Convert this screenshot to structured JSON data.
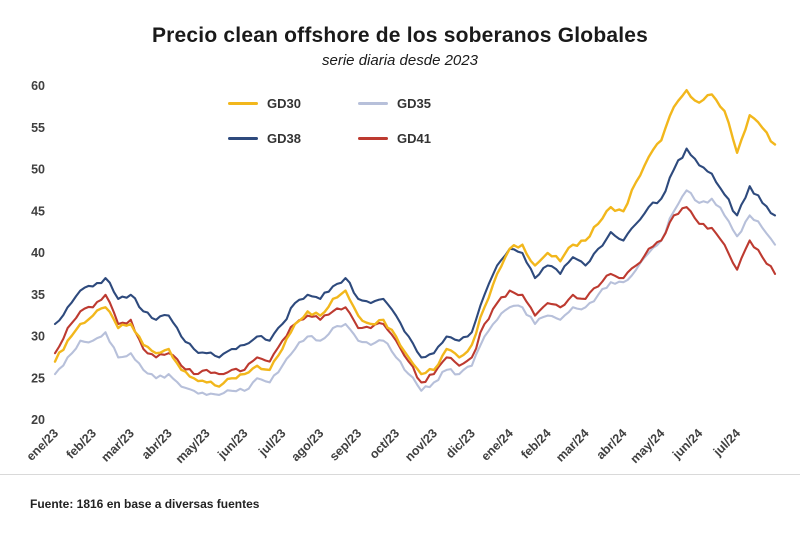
{
  "header": {
    "title": "Precio clean offshore de los soberanos Globales",
    "subtitle": "serie diaria desde 2023"
  },
  "footer": {
    "source": "Fuente: 1816 en base a diversas fuentes"
  },
  "chart_data": {
    "type": "line",
    "title": "Precio clean offshore de los soberanos Globales",
    "subtitle": "serie diaria desde 2023",
    "xlabel": "",
    "ylabel": "",
    "ylim": [
      20,
      60
    ],
    "yticks": [
      20,
      25,
      30,
      35,
      40,
      45,
      50,
      55,
      60
    ],
    "grid": false,
    "legend_position": "inside-top-left",
    "categories": [
      "ene/23",
      "feb/23",
      "mar/23",
      "abr/23",
      "may/23",
      "jun/23",
      "jul/23",
      "ago/23",
      "sep/23",
      "oct/23",
      "nov/23",
      "dic/23",
      "ene/24",
      "feb/24",
      "mar/24",
      "abr/24",
      "may/24",
      "jun/24",
      "jul/24"
    ],
    "x_note": "values sampled ~3 per month from ene/23 through fin jul/24",
    "series": [
      {
        "name": "GD30",
        "color": "#f2b71c",
        "values": [
          27.0,
          29.5,
          31.5,
          32.5,
          33.5,
          31.0,
          31.5,
          29.0,
          28.0,
          28.5,
          26.0,
          25.0,
          24.5,
          24.0,
          25.0,
          25.5,
          26.5,
          26.0,
          28.5,
          31.5,
          33.0,
          32.5,
          34.5,
          35.5,
          32.5,
          31.5,
          32.0,
          30.0,
          27.5,
          25.5,
          26.0,
          28.5,
          27.5,
          29.0,
          33.5,
          37.5,
          40.5,
          41.0,
          38.5,
          40.0,
          39.0,
          41.0,
          41.5,
          43.5,
          45.5,
          45.0,
          48.5,
          51.5,
          53.5,
          57.5,
          59.5,
          58.0,
          59.0,
          57.0,
          52.0,
          56.5,
          55.0,
          53.0
        ]
      },
      {
        "name": "GD35",
        "color": "#b7c0da",
        "values": [
          25.5,
          27.5,
          29.5,
          29.5,
          30.5,
          27.5,
          28.0,
          26.0,
          25.0,
          25.5,
          24.0,
          23.5,
          23.0,
          23.0,
          23.5,
          23.5,
          25.0,
          24.5,
          26.5,
          28.5,
          30.0,
          29.5,
          31.0,
          31.5,
          29.5,
          29.0,
          29.5,
          27.5,
          25.5,
          23.5,
          24.5,
          26.0,
          25.5,
          26.5,
          30.0,
          32.0,
          33.5,
          33.5,
          31.5,
          32.5,
          32.0,
          33.5,
          33.5,
          35.0,
          36.5,
          36.5,
          38.0,
          40.0,
          41.5,
          45.0,
          47.5,
          46.0,
          46.5,
          44.5,
          42.0,
          44.5,
          43.0,
          41.0
        ]
      },
      {
        "name": "GD38",
        "color": "#2e4a7d",
        "values": [
          31.5,
          33.5,
          35.5,
          36.0,
          37.0,
          34.5,
          35.0,
          33.0,
          32.0,
          32.5,
          30.0,
          28.5,
          28.0,
          27.5,
          28.5,
          29.0,
          30.0,
          29.5,
          31.5,
          34.0,
          35.0,
          34.5,
          36.0,
          37.0,
          34.5,
          34.0,
          34.5,
          32.5,
          30.0,
          27.5,
          28.0,
          30.0,
          29.5,
          30.5,
          35.0,
          38.5,
          40.5,
          40.0,
          37.0,
          38.5,
          37.5,
          39.5,
          38.5,
          40.5,
          42.5,
          41.5,
          43.5,
          45.5,
          46.5,
          50.0,
          52.5,
          50.5,
          49.5,
          47.0,
          44.5,
          48.0,
          46.0,
          44.5
        ]
      },
      {
        "name": "GD41",
        "color": "#bd3a30",
        "values": [
          28.0,
          31.0,
          33.0,
          33.5,
          35.0,
          31.5,
          32.0,
          28.5,
          27.5,
          28.0,
          26.5,
          25.5,
          26.0,
          25.5,
          26.0,
          26.0,
          27.5,
          27.0,
          29.5,
          31.5,
          32.5,
          32.0,
          33.0,
          33.5,
          31.0,
          31.0,
          31.5,
          29.5,
          27.0,
          24.5,
          25.5,
          27.5,
          26.5,
          27.5,
          31.5,
          34.0,
          35.5,
          35.0,
          32.5,
          34.0,
          33.5,
          35.0,
          34.5,
          36.0,
          37.5,
          37.0,
          38.5,
          40.5,
          41.5,
          44.5,
          45.5,
          43.5,
          43.0,
          41.0,
          38.0,
          41.5,
          39.5,
          37.5
        ]
      }
    ]
  }
}
